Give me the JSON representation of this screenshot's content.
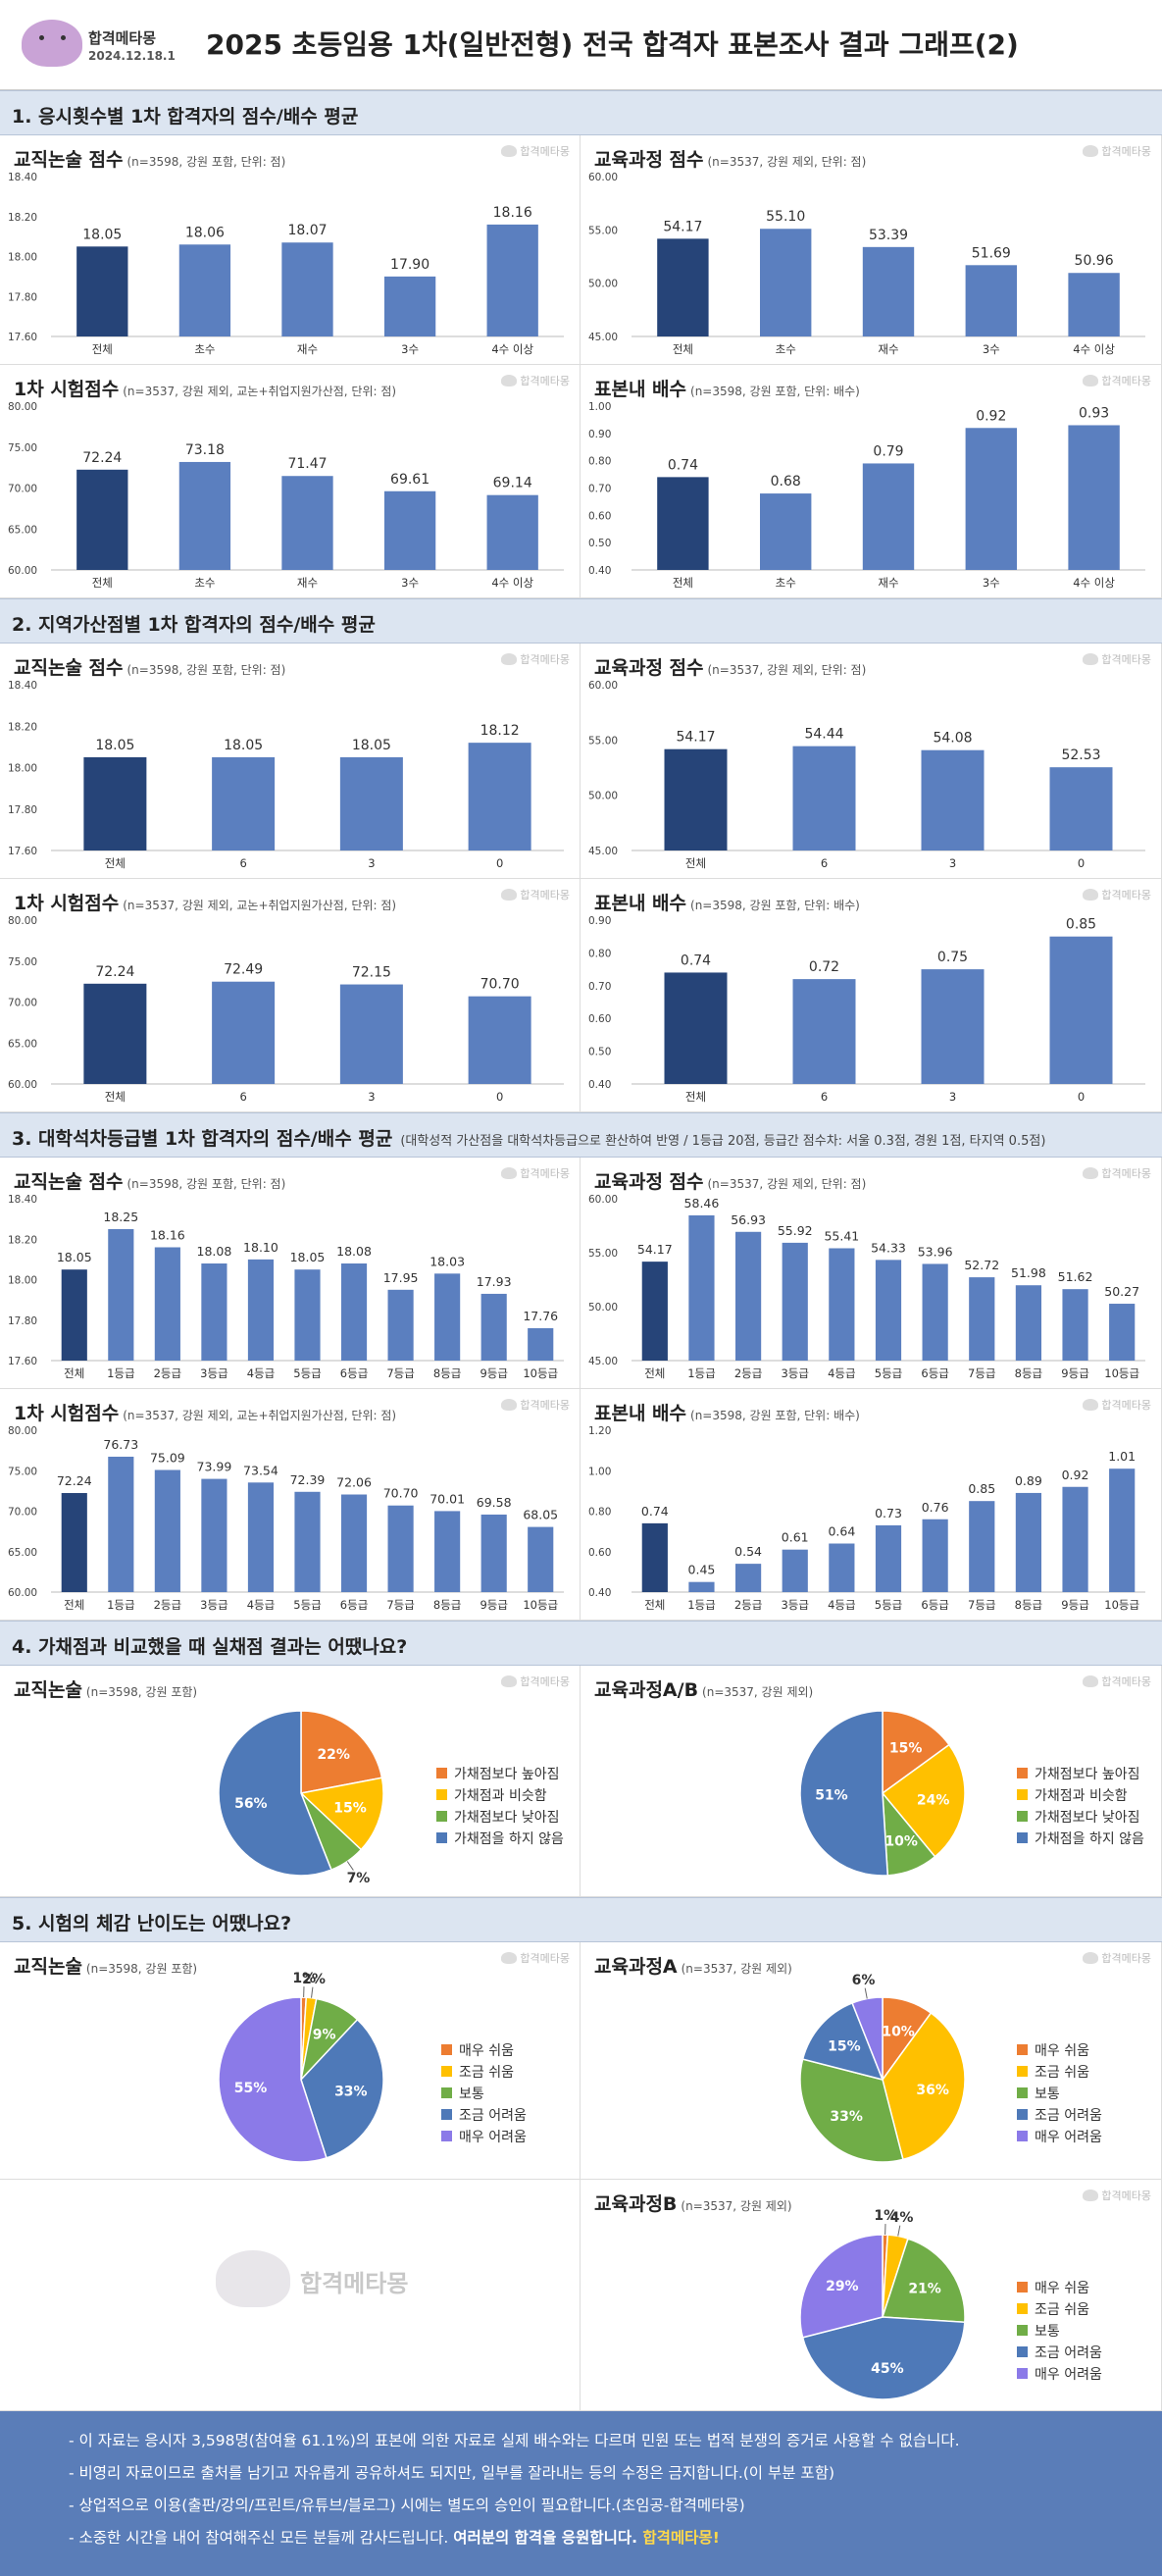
{
  "header": {
    "logo_name": "합격메타몽",
    "logo_date": "2024.12.18.1",
    "title": "2025 초등임용 1차(일반전형) 전국 합격자 표본조사 결과 그래프(2)"
  },
  "watermark_small": "합격메타몽",
  "watermark_big": "합격메타몽",
  "sections": {
    "s1": "1. 응시횟수별 1차 합격자의 점수/배수 평균",
    "s2": "2. 지역가산점별 1차 합격자의 점수/배수 평균",
    "s3": "3. 대학석차등급별 1차 합격자의 점수/배수 평균",
    "s3_note": "(대학성적 가산점을 대학석차등급으로 환산하여 반영 / 1등급 20점, 등급간 점수차: 서울 0.3점, 경원 1점, 타지역 0.5점)",
    "s4": "4. 가채점과 비교했을 때 실채점 결과는 어땠나요?",
    "s5": "5. 시험의 체감 난이도는 어땠나요?"
  },
  "colors": {
    "dark": "#264478",
    "bar": "#5b7fbf",
    "c_orange": "#ed7d31",
    "c_yellow": "#ffc000",
    "c_green": "#70ad47",
    "c_blue": "#4e79b8",
    "c_purple": "#8b7ae8"
  },
  "chart_data": [
    {
      "id": "b1",
      "type": "bar",
      "title": "교직논술 점수",
      "note": "(n=3598, 강원 포함, 단위: 점)",
      "categories": [
        "전체",
        "초수",
        "재수",
        "3수",
        "4수 이상"
      ],
      "values": [
        18.05,
        18.06,
        18.07,
        17.9,
        18.16
      ],
      "labels": [
        "18.05",
        "18.06",
        "18.07",
        "17.90",
        "18.16"
      ],
      "ylim": [
        17.6,
        18.4
      ],
      "ticks": [
        "17.60",
        "17.80",
        "18.00",
        "18.20",
        "18.40"
      ]
    },
    {
      "id": "b2",
      "type": "bar",
      "title": "교육과정 점수",
      "note": "(n=3537, 강원 제외, 단위: 점)",
      "categories": [
        "전체",
        "초수",
        "재수",
        "3수",
        "4수 이상"
      ],
      "values": [
        54.17,
        55.1,
        53.39,
        51.69,
        50.96
      ],
      "labels": [
        "54.17",
        "55.10",
        "53.39",
        "51.69",
        "50.96"
      ],
      "ylim": [
        45,
        60
      ],
      "ticks": [
        "45.00",
        "50.00",
        "55.00",
        "60.00"
      ]
    },
    {
      "id": "b3",
      "type": "bar",
      "title": "1차 시험점수",
      "note": "(n=3537, 강원 제외, 교논+취업지원가산점, 단위: 점)",
      "categories": [
        "전체",
        "초수",
        "재수",
        "3수",
        "4수 이상"
      ],
      "values": [
        72.24,
        73.18,
        71.47,
        69.61,
        69.14
      ],
      "labels": [
        "72.24",
        "73.18",
        "71.47",
        "69.61",
        "69.14"
      ],
      "ylim": [
        60,
        80
      ],
      "ticks": [
        "60.00",
        "65.00",
        "70.00",
        "75.00",
        "80.00"
      ]
    },
    {
      "id": "b4",
      "type": "bar",
      "title": "표본내 배수",
      "note": "(n=3598, 강원 포함, 단위: 배수)",
      "categories": [
        "전체",
        "초수",
        "재수",
        "3수",
        "4수 이상"
      ],
      "values": [
        0.74,
        0.68,
        0.79,
        0.92,
        0.93
      ],
      "labels": [
        "0.74",
        "0.68",
        "0.79",
        "0.92",
        "0.93"
      ],
      "ylim": [
        0.4,
        1.0
      ],
      "ticks": [
        "0.40",
        "0.50",
        "0.60",
        "0.70",
        "0.80",
        "0.90",
        "1.00"
      ]
    },
    {
      "id": "b5",
      "type": "bar",
      "title": "교직논술 점수",
      "note": "(n=3598, 강원 포함, 단위: 점)",
      "categories": [
        "전체",
        "6",
        "3",
        "0"
      ],
      "values": [
        18.05,
        18.05,
        18.05,
        18.12
      ],
      "labels": [
        "18.05",
        "18.05",
        "18.05",
        "18.12"
      ],
      "ylim": [
        17.6,
        18.4
      ],
      "ticks": [
        "17.60",
        "17.80",
        "18.00",
        "18.20",
        "18.40"
      ]
    },
    {
      "id": "b6",
      "type": "bar",
      "title": "교육과정 점수",
      "note": "(n=3537, 강원 제외, 단위: 점)",
      "categories": [
        "전체",
        "6",
        "3",
        "0"
      ],
      "values": [
        54.17,
        54.44,
        54.08,
        52.53
      ],
      "labels": [
        "54.17",
        "54.44",
        "54.08",
        "52.53"
      ],
      "ylim": [
        45,
        60
      ],
      "ticks": [
        "45.00",
        "50.00",
        "55.00",
        "60.00"
      ]
    },
    {
      "id": "b7",
      "type": "bar",
      "title": "1차 시험점수",
      "note": "(n=3537, 강원 제외, 교논+취업지원가산점, 단위: 점)",
      "categories": [
        "전체",
        "6",
        "3",
        "0"
      ],
      "values": [
        72.24,
        72.49,
        72.15,
        70.7
      ],
      "labels": [
        "72.24",
        "72.49",
        "72.15",
        "70.70"
      ],
      "ylim": [
        60,
        80
      ],
      "ticks": [
        "60.00",
        "65.00",
        "70.00",
        "75.00",
        "80.00"
      ]
    },
    {
      "id": "b8",
      "type": "bar",
      "title": "표본내 배수",
      "note": "(n=3598, 강원 포함, 단위: 배수)",
      "categories": [
        "전체",
        "6",
        "3",
        "0"
      ],
      "values": [
        0.74,
        0.72,
        0.75,
        0.85
      ],
      "labels": [
        "0.74",
        "0.72",
        "0.75",
        "0.85"
      ],
      "ylim": [
        0.4,
        0.9
      ],
      "ticks": [
        "0.40",
        "0.50",
        "0.60",
        "0.70",
        "0.80",
        "0.90"
      ]
    },
    {
      "id": "b9",
      "type": "bar",
      "title": "교직논술 점수",
      "note": "(n=3598, 강원 포함, 단위: 점)",
      "categories": [
        "전체",
        "1등급",
        "2등급",
        "3등급",
        "4등급",
        "5등급",
        "6등급",
        "7등급",
        "8등급",
        "9등급",
        "10등급"
      ],
      "values": [
        18.05,
        18.25,
        18.16,
        18.08,
        18.1,
        18.05,
        18.08,
        17.95,
        18.03,
        17.93,
        17.76
      ],
      "labels": [
        "18.05",
        "18.25",
        "18.16",
        "18.08",
        "18.10",
        "18.05",
        "18.08",
        "17.95",
        "18.03",
        "17.93",
        "17.76"
      ],
      "ylim": [
        17.6,
        18.4
      ],
      "ticks": [
        "17.60",
        "17.80",
        "18.00",
        "18.20",
        "18.40"
      ]
    },
    {
      "id": "b10",
      "type": "bar",
      "title": "교육과정 점수",
      "note": "(n=3537, 강원 제외, 단위: 점)",
      "categories": [
        "전체",
        "1등급",
        "2등급",
        "3등급",
        "4등급",
        "5등급",
        "6등급",
        "7등급",
        "8등급",
        "9등급",
        "10등급"
      ],
      "values": [
        54.17,
        58.46,
        56.93,
        55.92,
        55.41,
        54.33,
        53.96,
        52.72,
        51.98,
        51.62,
        50.27
      ],
      "labels": [
        "54.17",
        "58.46",
        "56.93",
        "55.92",
        "55.41",
        "54.33",
        "53.96",
        "52.72",
        "51.98",
        "51.62",
        "50.27"
      ],
      "ylim": [
        45,
        60
      ],
      "ticks": [
        "45.00",
        "50.00",
        "55.00",
        "60.00"
      ]
    },
    {
      "id": "b11",
      "type": "bar",
      "title": "1차 시험점수",
      "note": "(n=3537, 강원 제외, 교논+취업지원가산점, 단위: 점)",
      "categories": [
        "전체",
        "1등급",
        "2등급",
        "3등급",
        "4등급",
        "5등급",
        "6등급",
        "7등급",
        "8등급",
        "9등급",
        "10등급"
      ],
      "values": [
        72.24,
        76.73,
        75.09,
        73.99,
        73.54,
        72.39,
        72.06,
        70.7,
        70.01,
        69.58,
        68.05
      ],
      "labels": [
        "72.24",
        "76.73",
        "75.09",
        "73.99",
        "73.54",
        "72.39",
        "72.06",
        "70.70",
        "70.01",
        "69.58",
        "68.05"
      ],
      "ylim": [
        60,
        80
      ],
      "ticks": [
        "60.00",
        "65.00",
        "70.00",
        "75.00",
        "80.00"
      ]
    },
    {
      "id": "b12",
      "type": "bar",
      "title": "표본내 배수",
      "note": "(n=3598, 강원 포함, 단위: 배수)",
      "categories": [
        "전체",
        "1등급",
        "2등급",
        "3등급",
        "4등급",
        "5등급",
        "6등급",
        "7등급",
        "8등급",
        "9등급",
        "10등급"
      ],
      "values": [
        0.74,
        0.45,
        0.54,
        0.61,
        0.64,
        0.73,
        0.76,
        0.85,
        0.89,
        0.92,
        1.01
      ],
      "labels": [
        "0.74",
        "0.45",
        "0.54",
        "0.61",
        "0.64",
        "0.73",
        "0.76",
        "0.85",
        "0.89",
        "0.92",
        "1.01"
      ],
      "ylim": [
        0.4,
        1.2
      ],
      "ticks": [
        "0.40",
        "0.60",
        "0.80",
        "1.00",
        "1.20"
      ]
    },
    {
      "id": "p1",
      "type": "pie",
      "title": "교직논술",
      "note": "(n=3598, 강원 포함)",
      "categories": [
        "가채점보다 높아짐",
        "가채점과 비슷함",
        "가채점보다 낮아짐",
        "가채점을 하지 않음"
      ],
      "values": [
        22,
        15,
        7,
        56
      ],
      "labels": [
        "22%",
        "15%",
        "7%",
        "56%"
      ],
      "colors": [
        "#ed7d31",
        "#ffc000",
        "#70ad47",
        "#4e79b8"
      ]
    },
    {
      "id": "p2",
      "type": "pie",
      "title": "교육과정A/B",
      "note": "(n=3537, 강원 제외)",
      "categories": [
        "가채점보다 높아짐",
        "가채점과 비슷함",
        "가채점보다 낮아짐",
        "가채점을 하지 않음"
      ],
      "values": [
        15,
        24,
        10,
        51
      ],
      "labels": [
        "15%",
        "24%",
        "10%",
        "51%"
      ],
      "colors": [
        "#ed7d31",
        "#ffc000",
        "#70ad47",
        "#4e79b8"
      ]
    },
    {
      "id": "p3",
      "type": "pie",
      "title": "교직논술",
      "note": "(n=3598, 강원 포함)",
      "categories": [
        "매우 쉬움",
        "조금 쉬움",
        "보통",
        "조금 어려움",
        "매우 어려움"
      ],
      "values": [
        1,
        2,
        9,
        33,
        55
      ],
      "labels": [
        "1%",
        "2%",
        "9%",
        "33%",
        "55%"
      ],
      "colors": [
        "#ed7d31",
        "#ffc000",
        "#70ad47",
        "#4e79b8",
        "#8b7ae8"
      ]
    },
    {
      "id": "p4",
      "type": "pie",
      "title": "교육과정A",
      "note": "(n=3537, 강원 제외)",
      "categories": [
        "매우 쉬움",
        "조금 쉬움",
        "보통",
        "조금 어려움",
        "매우 어려움"
      ],
      "values": [
        10,
        36,
        33,
        15,
        6
      ],
      "labels": [
        "10%",
        "36%",
        "33%",
        "15%",
        "6%"
      ],
      "colors": [
        "#ed7d31",
        "#ffc000",
        "#70ad47",
        "#4e79b8",
        "#8b7ae8"
      ]
    },
    {
      "id": "p5",
      "type": "pie",
      "title": "교육과정B",
      "note": "(n=3537, 강원 제외)",
      "categories": [
        "매우 쉬움",
        "조금 쉬움",
        "보통",
        "조금 어려움",
        "매우 어려움"
      ],
      "values": [
        1,
        4,
        21,
        45,
        29
      ],
      "labels": [
        "1%",
        "4%",
        "21%",
        "45%",
        "29%"
      ],
      "colors": [
        "#ed7d31",
        "#ffc000",
        "#70ad47",
        "#4e79b8",
        "#8b7ae8"
      ]
    }
  ],
  "footer": {
    "line1": "- 이 자료는 응시자 3,598명(참여율 61.1%)의 표본에 의한 자료로 실제 배수와는 다르며 민원 또는 법적 분쟁의 증거로 사용할 수 없습니다.",
    "line2": "- 비영리 자료이므로 출처를 남기고 자유롭게 공유하셔도 되지만, 일부를 잘라내는 등의 수정은 금지합니다.(이 부분 포함)",
    "line3": "- 상업적으로 이용(출판/강의/프린트/유튜브/블로그) 시에는 별도의 승인이 필요합니다.(초임공-합격메타몽)",
    "line4_a": "- 소중한 시간을 내어 참여해주신 모든 분들께 감사드립니다. ",
    "line4_b": "여러분의 합격을 응원합니다. ",
    "line4_c": "합격메타몽!"
  }
}
